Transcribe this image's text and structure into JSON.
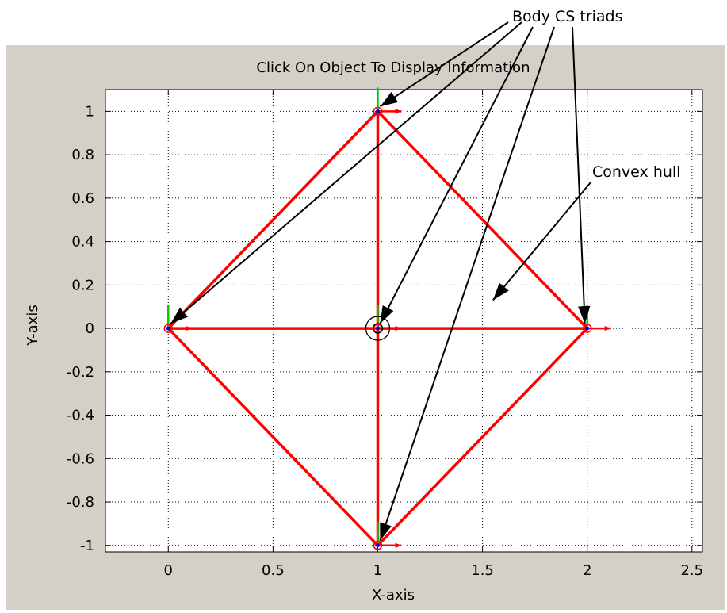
{
  "chart_data": {
    "type": "line",
    "title": "Click On Object To Display Information",
    "xlabel": "X-axis",
    "ylabel": "Y-axis",
    "xlim": [
      -0.3,
      2.55
    ],
    "ylim": [
      -1.03,
      1.1
    ],
    "grid": true,
    "x_ticks": [
      0,
      0.5,
      1,
      1.5,
      2,
      2.5
    ],
    "x_tick_labels": [
      "0",
      "0.5",
      "1",
      "1.5",
      "2",
      "2.5"
    ],
    "y_ticks": [
      1,
      0.8,
      0.6,
      0.4,
      0.2,
      0,
      -0.2,
      -0.4,
      -0.6,
      -0.8,
      -1
    ],
    "y_tick_labels": [
      "1",
      "0.8",
      "0.6",
      "0.4",
      "0.2",
      "0",
      "-0.2",
      "-0.4",
      "-0.6",
      "-0.8",
      "-1"
    ],
    "series_color": "#ff0000",
    "body_points": [
      {
        "x": 0,
        "y": 0
      },
      {
        "x": 1,
        "y": 1
      },
      {
        "x": 1,
        "y": 0
      },
      {
        "x": 2,
        "y": 0
      },
      {
        "x": 1,
        "y": -1
      }
    ],
    "edges": [
      [
        [
          0,
          0
        ],
        [
          1,
          1
        ]
      ],
      [
        [
          1,
          1
        ],
        [
          2,
          0
        ]
      ],
      [
        [
          2,
          0
        ],
        [
          1,
          -1
        ]
      ],
      [
        [
          1,
          -1
        ],
        [
          0,
          0
        ]
      ],
      [
        [
          0,
          0
        ],
        [
          2,
          0
        ]
      ],
      [
        [
          1,
          1
        ],
        [
          1,
          -1
        ]
      ]
    ],
    "selected_point": {
      "x": 1,
      "y": 0
    },
    "annotations": [
      {
        "text": "Body CS triads",
        "targets": [
          [
            1,
            1
          ],
          [
            0,
            0
          ],
          [
            1,
            0
          ],
          [
            2,
            0
          ],
          [
            1,
            -1
          ]
        ]
      },
      {
        "text": "Convex hull",
        "targets": [
          [
            1.55,
            0.13
          ]
        ]
      }
    ]
  },
  "colors": {
    "figure_background": "#d4d0c8",
    "axes_background": "#ffffff",
    "edge": "#ff0000",
    "triad_x": "#ff0000",
    "triad_y": "#00cc00",
    "point_marker": "#0000ff",
    "grid": "#000000"
  }
}
